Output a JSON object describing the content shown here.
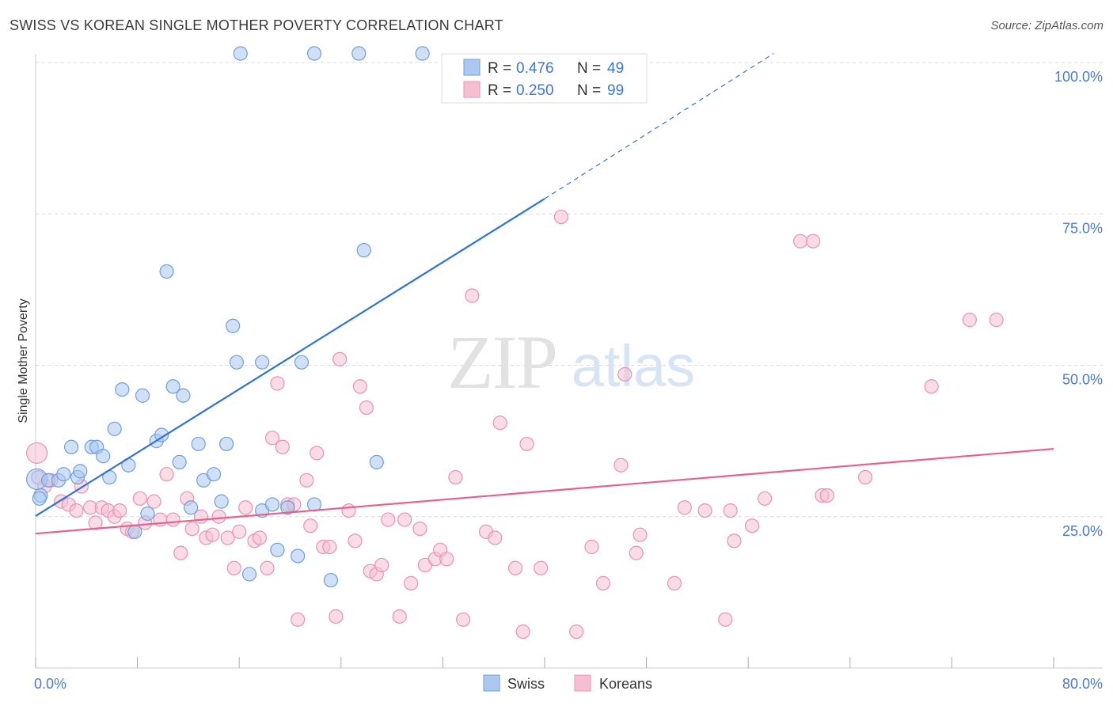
{
  "title": "SWISS VS KOREAN SINGLE MOTHER POVERTY CORRELATION CHART",
  "source": "Source: ZipAtlas.com",
  "colors": {
    "swiss_fill": "#aac8f0",
    "swiss_stroke": "#6f9fdf",
    "swiss_line": "#2e74d0",
    "korean_fill": "#f6bfd1",
    "korean_stroke": "#e893b0",
    "korean_line": "#e5628e",
    "tick_text": "#4a7cc9",
    "grid": "#d9d9d9"
  },
  "legend": {
    "swiss": {
      "r_label": "R =",
      "r_value": "0.476",
      "n_label": "N =",
      "n_value": "49"
    },
    "korean": {
      "r_label": "R =",
      "r_value": "0.250",
      "n_label": "N =",
      "n_value": "99"
    }
  },
  "chart_data": {
    "type": "scatter",
    "title": "SWISS VS KOREAN SINGLE MOTHER POVERTY CORRELATION CHART",
    "xlabel": "",
    "ylabel": "Single Mother Poverty",
    "xlim": [
      0,
      80
    ],
    "ylim": [
      0,
      100
    ],
    "x_ticks": [
      0,
      80
    ],
    "x_tick_labels": [
      "0.0%",
      "80.0%"
    ],
    "y_ticks": [
      25,
      50,
      75,
      100
    ],
    "y_tick_labels": [
      "25.0%",
      "50.0%",
      "75.0%",
      "100.0%"
    ],
    "grid": true,
    "legend_position": "top-center",
    "watermark": "ZIPatlas",
    "series": [
      {
        "name": "Swiss",
        "r": 0.476,
        "n": 49,
        "trend": {
          "x0": 0,
          "y0": 25.1,
          "x1": 40,
          "y1": 77.5,
          "dash_to_x": 58,
          "dash_to_y": 101.5
        },
        "points": [
          [
            0.1,
            31.2
          ],
          [
            0.4,
            28.5
          ],
          [
            1.0,
            31.0
          ],
          [
            1.8,
            31.0
          ],
          [
            2.2,
            32.0
          ],
          [
            2.8,
            36.5
          ],
          [
            3.3,
            31.5
          ],
          [
            3.5,
            32.5
          ],
          [
            4.4,
            36.5
          ],
          [
            4.8,
            36.5
          ],
          [
            5.3,
            35.0
          ],
          [
            5.8,
            31.5
          ],
          [
            6.2,
            39.5
          ],
          [
            6.8,
            46.0
          ],
          [
            7.3,
            33.5
          ],
          [
            7.8,
            22.5
          ],
          [
            8.4,
            45.0
          ],
          [
            8.8,
            25.5
          ],
          [
            9.5,
            37.5
          ],
          [
            9.9,
            38.5
          ],
          [
            10.3,
            65.5
          ],
          [
            10.8,
            46.5
          ],
          [
            11.3,
            34.0
          ],
          [
            11.6,
            45.0
          ],
          [
            12.2,
            26.5
          ],
          [
            12.8,
            37.0
          ],
          [
            13.2,
            31.0
          ],
          [
            14.0,
            32.0
          ],
          [
            14.6,
            27.5
          ],
          [
            15.0,
            37.0
          ],
          [
            15.5,
            56.5
          ],
          [
            15.8,
            50.5
          ],
          [
            16.1,
            101.5
          ],
          [
            16.8,
            15.5
          ],
          [
            17.8,
            50.5
          ],
          [
            17.8,
            26.0
          ],
          [
            18.6,
            27.0
          ],
          [
            19.0,
            19.5
          ],
          [
            19.8,
            26.5
          ],
          [
            20.6,
            18.5
          ],
          [
            20.9,
            50.5
          ],
          [
            21.9,
            101.5
          ],
          [
            21.9,
            27.0
          ],
          [
            23.2,
            14.5
          ],
          [
            25.4,
            101.5
          ],
          [
            25.8,
            69.0
          ],
          [
            26.8,
            34.0
          ],
          [
            30.4,
            101.5
          ],
          [
            0.3,
            28.0
          ]
        ]
      },
      {
        "name": "Koreans",
        "r": 0.25,
        "n": 99,
        "trend": {
          "x0": 0,
          "y0": 22.2,
          "x1": 80,
          "y1": 36.2
        },
        "points": [
          [
            0.1,
            35.5
          ],
          [
            0.2,
            31.5
          ],
          [
            0.7,
            30.0
          ],
          [
            1.2,
            31.0
          ],
          [
            2.0,
            27.5
          ],
          [
            2.6,
            27.0
          ],
          [
            3.2,
            26.0
          ],
          [
            3.6,
            30.0
          ],
          [
            4.3,
            26.5
          ],
          [
            4.7,
            24.0
          ],
          [
            5.2,
            26.5
          ],
          [
            5.7,
            26.0
          ],
          [
            6.2,
            25.0
          ],
          [
            6.6,
            26.0
          ],
          [
            7.2,
            23.0
          ],
          [
            7.6,
            22.5
          ],
          [
            8.2,
            28.0
          ],
          [
            8.6,
            24.0
          ],
          [
            9.3,
            27.5
          ],
          [
            9.8,
            24.5
          ],
          [
            10.3,
            32.0
          ],
          [
            10.8,
            24.5
          ],
          [
            11.4,
            19.0
          ],
          [
            11.9,
            28.0
          ],
          [
            12.3,
            23.0
          ],
          [
            13.0,
            25.0
          ],
          [
            13.4,
            21.5
          ],
          [
            13.9,
            22.0
          ],
          [
            14.4,
            25.0
          ],
          [
            15.1,
            21.5
          ],
          [
            15.6,
            16.5
          ],
          [
            16.0,
            22.5
          ],
          [
            16.5,
            26.5
          ],
          [
            17.2,
            21.0
          ],
          [
            17.6,
            21.5
          ],
          [
            18.2,
            16.5
          ],
          [
            18.6,
            38.0
          ],
          [
            19.0,
            47.0
          ],
          [
            19.4,
            36.5
          ],
          [
            19.8,
            27.0
          ],
          [
            20.3,
            27.0
          ],
          [
            20.6,
            8.0
          ],
          [
            21.3,
            31.0
          ],
          [
            21.6,
            23.5
          ],
          [
            22.1,
            35.5
          ],
          [
            22.6,
            20.0
          ],
          [
            23.1,
            20.0
          ],
          [
            23.6,
            8.5
          ],
          [
            23.9,
            51.0
          ],
          [
            24.6,
            26.0
          ],
          [
            25.1,
            21.0
          ],
          [
            25.5,
            46.5
          ],
          [
            26.0,
            43.0
          ],
          [
            26.3,
            16.0
          ],
          [
            26.8,
            15.5
          ],
          [
            27.2,
            17.0
          ],
          [
            27.7,
            24.5
          ],
          [
            28.6,
            8.5
          ],
          [
            29.0,
            24.5
          ],
          [
            29.5,
            14.0
          ],
          [
            30.2,
            23.0
          ],
          [
            30.6,
            17.0
          ],
          [
            31.4,
            18.0
          ],
          [
            31.8,
            19.5
          ],
          [
            32.3,
            18.0
          ],
          [
            33.0,
            31.5
          ],
          [
            33.6,
            8.0
          ],
          [
            34.3,
            61.5
          ],
          [
            35.4,
            22.5
          ],
          [
            36.1,
            21.5
          ],
          [
            36.5,
            40.5
          ],
          [
            37.7,
            16.5
          ],
          [
            38.3,
            6.0
          ],
          [
            38.6,
            37.0
          ],
          [
            39.7,
            16.5
          ],
          [
            41.3,
            74.5
          ],
          [
            42.5,
            6.0
          ],
          [
            43.7,
            20.0
          ],
          [
            44.6,
            14.0
          ],
          [
            46.0,
            33.5
          ],
          [
            46.3,
            48.5
          ],
          [
            47.2,
            19.0
          ],
          [
            47.5,
            22.0
          ],
          [
            50.2,
            14.0
          ],
          [
            51.0,
            26.5
          ],
          [
            52.6,
            26.0
          ],
          [
            54.2,
            8.0
          ],
          [
            54.6,
            26.0
          ],
          [
            54.9,
            21.0
          ],
          [
            56.3,
            23.5
          ],
          [
            57.3,
            28.0
          ],
          [
            60.1,
            70.5
          ],
          [
            61.1,
            70.5
          ],
          [
            61.8,
            28.5
          ],
          [
            62.2,
            28.5
          ],
          [
            65.2,
            31.5
          ],
          [
            70.4,
            46.5
          ],
          [
            73.4,
            57.5
          ],
          [
            75.5,
            57.5
          ]
        ]
      }
    ]
  }
}
